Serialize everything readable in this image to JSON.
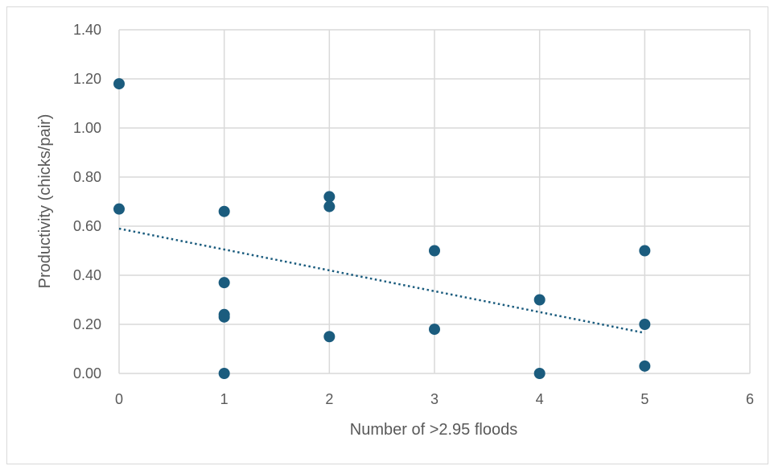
{
  "chart_data": {
    "type": "scatter",
    "title": "",
    "xlabel": "Number of >2.95 floods",
    "ylabel": "Productivity (chicks/pair)",
    "xlim": [
      0,
      6
    ],
    "ylim": [
      0,
      1.4
    ],
    "x_ticks": [
      "0",
      "1",
      "2",
      "3",
      "4",
      "5",
      "6"
    ],
    "y_ticks": [
      "0.00",
      "0.20",
      "0.40",
      "0.60",
      "0.80",
      "1.00",
      "1.20",
      "1.40"
    ],
    "grid": true,
    "legend": "none",
    "series": [
      {
        "color": "#1b5c7e",
        "points": [
          {
            "x": 0,
            "y": 1.18
          },
          {
            "x": 0,
            "y": 0.67
          },
          {
            "x": 1,
            "y": 0.66
          },
          {
            "x": 1,
            "y": 0.37
          },
          {
            "x": 1,
            "y": 0.24
          },
          {
            "x": 1,
            "y": 0.23
          },
          {
            "x": 1,
            "y": 0.0
          },
          {
            "x": 2,
            "y": 0.72
          },
          {
            "x": 2,
            "y": 0.68
          },
          {
            "x": 2,
            "y": 0.15
          },
          {
            "x": 3,
            "y": 0.5
          },
          {
            "x": 3,
            "y": 0.18
          },
          {
            "x": 4,
            "y": 0.3
          },
          {
            "x": 4,
            "y": 0.0
          },
          {
            "x": 5,
            "y": 0.5
          },
          {
            "x": 5,
            "y": 0.2
          },
          {
            "x": 5,
            "y": 0.03
          }
        ]
      }
    ],
    "trendline": {
      "style": "dotted",
      "color": "#1b5c7e",
      "x_range": [
        0,
        5
      ],
      "y_start": 0.59,
      "y_end": 0.165
    },
    "colors": {
      "grid": "#d9d9d9",
      "text": "#595959",
      "marker": "#1b5c7e"
    }
  }
}
